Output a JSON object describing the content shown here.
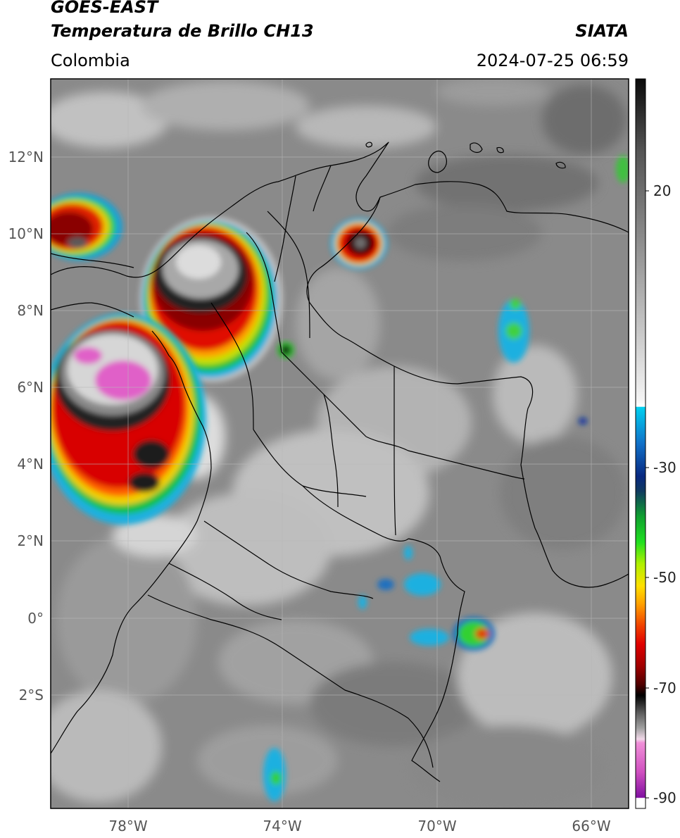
{
  "header": {
    "satellite": "GOES-EAST",
    "product": "Temperatura de Brillo CH13",
    "region": "Colombia",
    "brand": "SIATA",
    "timestamp": "2024-07-25 06:59"
  },
  "map": {
    "lat_labels": [
      "12°N",
      "10°N",
      "8°N",
      "6°N",
      "4°N",
      "2°N",
      "0°",
      "2°S"
    ],
    "lon_labels": [
      "78°W",
      "74°W",
      "70°W",
      "66°W"
    ],
    "colors": {
      "background_gray": "#8c8c8c",
      "border": "#000000",
      "grid": "#bdbdbd"
    },
    "storm_cells": [
      {
        "name": "Caribbean near Panama",
        "label": "storm-cell-panama"
      },
      {
        "name": "Cordoba / Antioquia",
        "label": "storm-cell-antioquia"
      },
      {
        "name": "Pacific Choco",
        "label": "storm-cell-choco"
      },
      {
        "name": "La Guajira",
        "label": "storm-cell-guajira"
      },
      {
        "name": "Amazonas east",
        "label": "storm-cell-amazonas"
      }
    ]
  },
  "colorbar": {
    "tick_labels": [
      "20",
      "-30",
      "-50",
      "-70",
      "-90"
    ],
    "colors": {
      "warm_gray_top": "#111111",
      "light_gray": "#e8e8e8",
      "cyan": "#00c8e8",
      "blue": "#1030a0",
      "green": "#10d020",
      "yellow": "#ffe000",
      "red": "#e00000",
      "black": "#000000",
      "pink": "#e060c8",
      "purple": "#8010a0"
    }
  }
}
